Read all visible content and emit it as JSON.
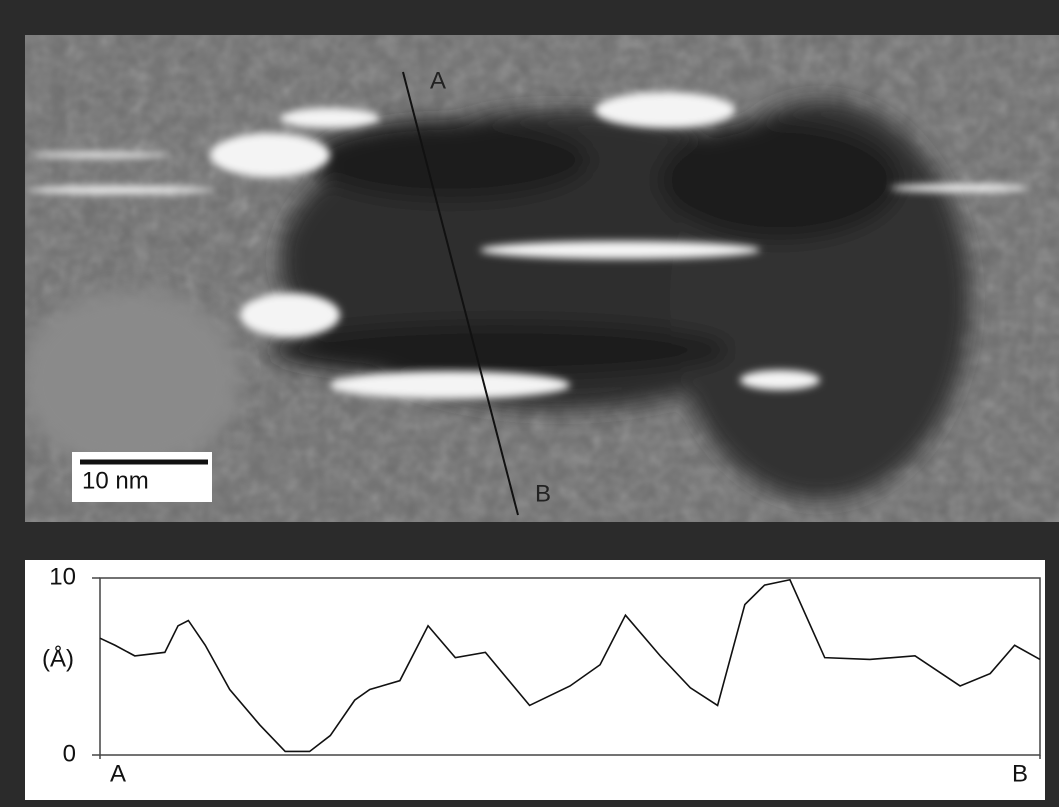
{
  "image_labels": {
    "start": "A",
    "end": "B",
    "scale_bar": "10 nm"
  },
  "chart_data": {
    "type": "line",
    "ylabel": "(Å)",
    "x": [
      0,
      1.6,
      3.7,
      6.9,
      8.3,
      9.4,
      11.2,
      13.8,
      17.0,
      19.7,
      22.3,
      24.5,
      27.1,
      28.7,
      31.9,
      34.9,
      37.8,
      41.0,
      45.7,
      50.0,
      53.2,
      55.9,
      59.6,
      62.8,
      65.7,
      68.6,
      70.7,
      73.4,
      77.1,
      81.9,
      86.7,
      91.5,
      94.7,
      97.3,
      100
    ],
    "series": [
      {
        "color": "#111111",
        "values": [
          6.6,
          6.2,
          5.6,
          5.8,
          7.3,
          7.6,
          6.2,
          3.7,
          1.7,
          0.2,
          0.2,
          1.1,
          3.1,
          3.7,
          4.2,
          7.3,
          5.5,
          5.8,
          2.8,
          3.9,
          5.1,
          7.9,
          5.6,
          3.8,
          2.8,
          8.5,
          9.6,
          9.9,
          5.5,
          5.4,
          5.6,
          3.9,
          4.6,
          6.2,
          5.4
        ]
      }
    ],
    "xlim": [
      0,
      100
    ],
    "xticks": [
      {
        "value": 0,
        "label": "A"
      },
      {
        "value": 100,
        "label": "B"
      }
    ],
    "ylim": [
      0,
      10
    ],
    "yticks": [
      0,
      10
    ]
  }
}
